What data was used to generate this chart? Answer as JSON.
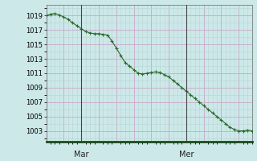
{
  "ylabel_ticks": [
    1003,
    1005,
    1007,
    1009,
    1011,
    1013,
    1015,
    1017,
    1019
  ],
  "ylim": [
    1001.5,
    1020.5
  ],
  "xlim": [
    0,
    47
  ],
  "background_color": "#cce8e8",
  "plot_bg_color": "#cce8e8",
  "line_color": "#2d6a2d",
  "marker_color": "#2d6a2d",
  "vline_color": "#444444",
  "vline_positions": [
    8,
    32
  ],
  "vline_labels": [
    "Mar",
    "Mer"
  ],
  "major_grid_color": "#c8a8c8",
  "minor_grid_color": "#b8d4d4",
  "y_values": [
    1019.0,
    1019.2,
    1019.3,
    1019.1,
    1018.8,
    1018.5,
    1018.0,
    1017.6,
    1017.2,
    1016.8,
    1016.6,
    1016.5,
    1016.5,
    1016.4,
    1016.3,
    1015.5,
    1014.5,
    1013.5,
    1012.5,
    1012.0,
    1011.5,
    1011.0,
    1010.9,
    1011.0,
    1011.1,
    1011.2,
    1011.1,
    1010.8,
    1010.5,
    1010.0,
    1009.5,
    1009.0,
    1008.5,
    1008.0,
    1007.5,
    1007.0,
    1006.5,
    1006.0,
    1005.5,
    1005.0,
    1004.5,
    1004.0,
    1003.5,
    1003.2,
    1003.0,
    1003.0,
    1003.1,
    1003.0
  ]
}
